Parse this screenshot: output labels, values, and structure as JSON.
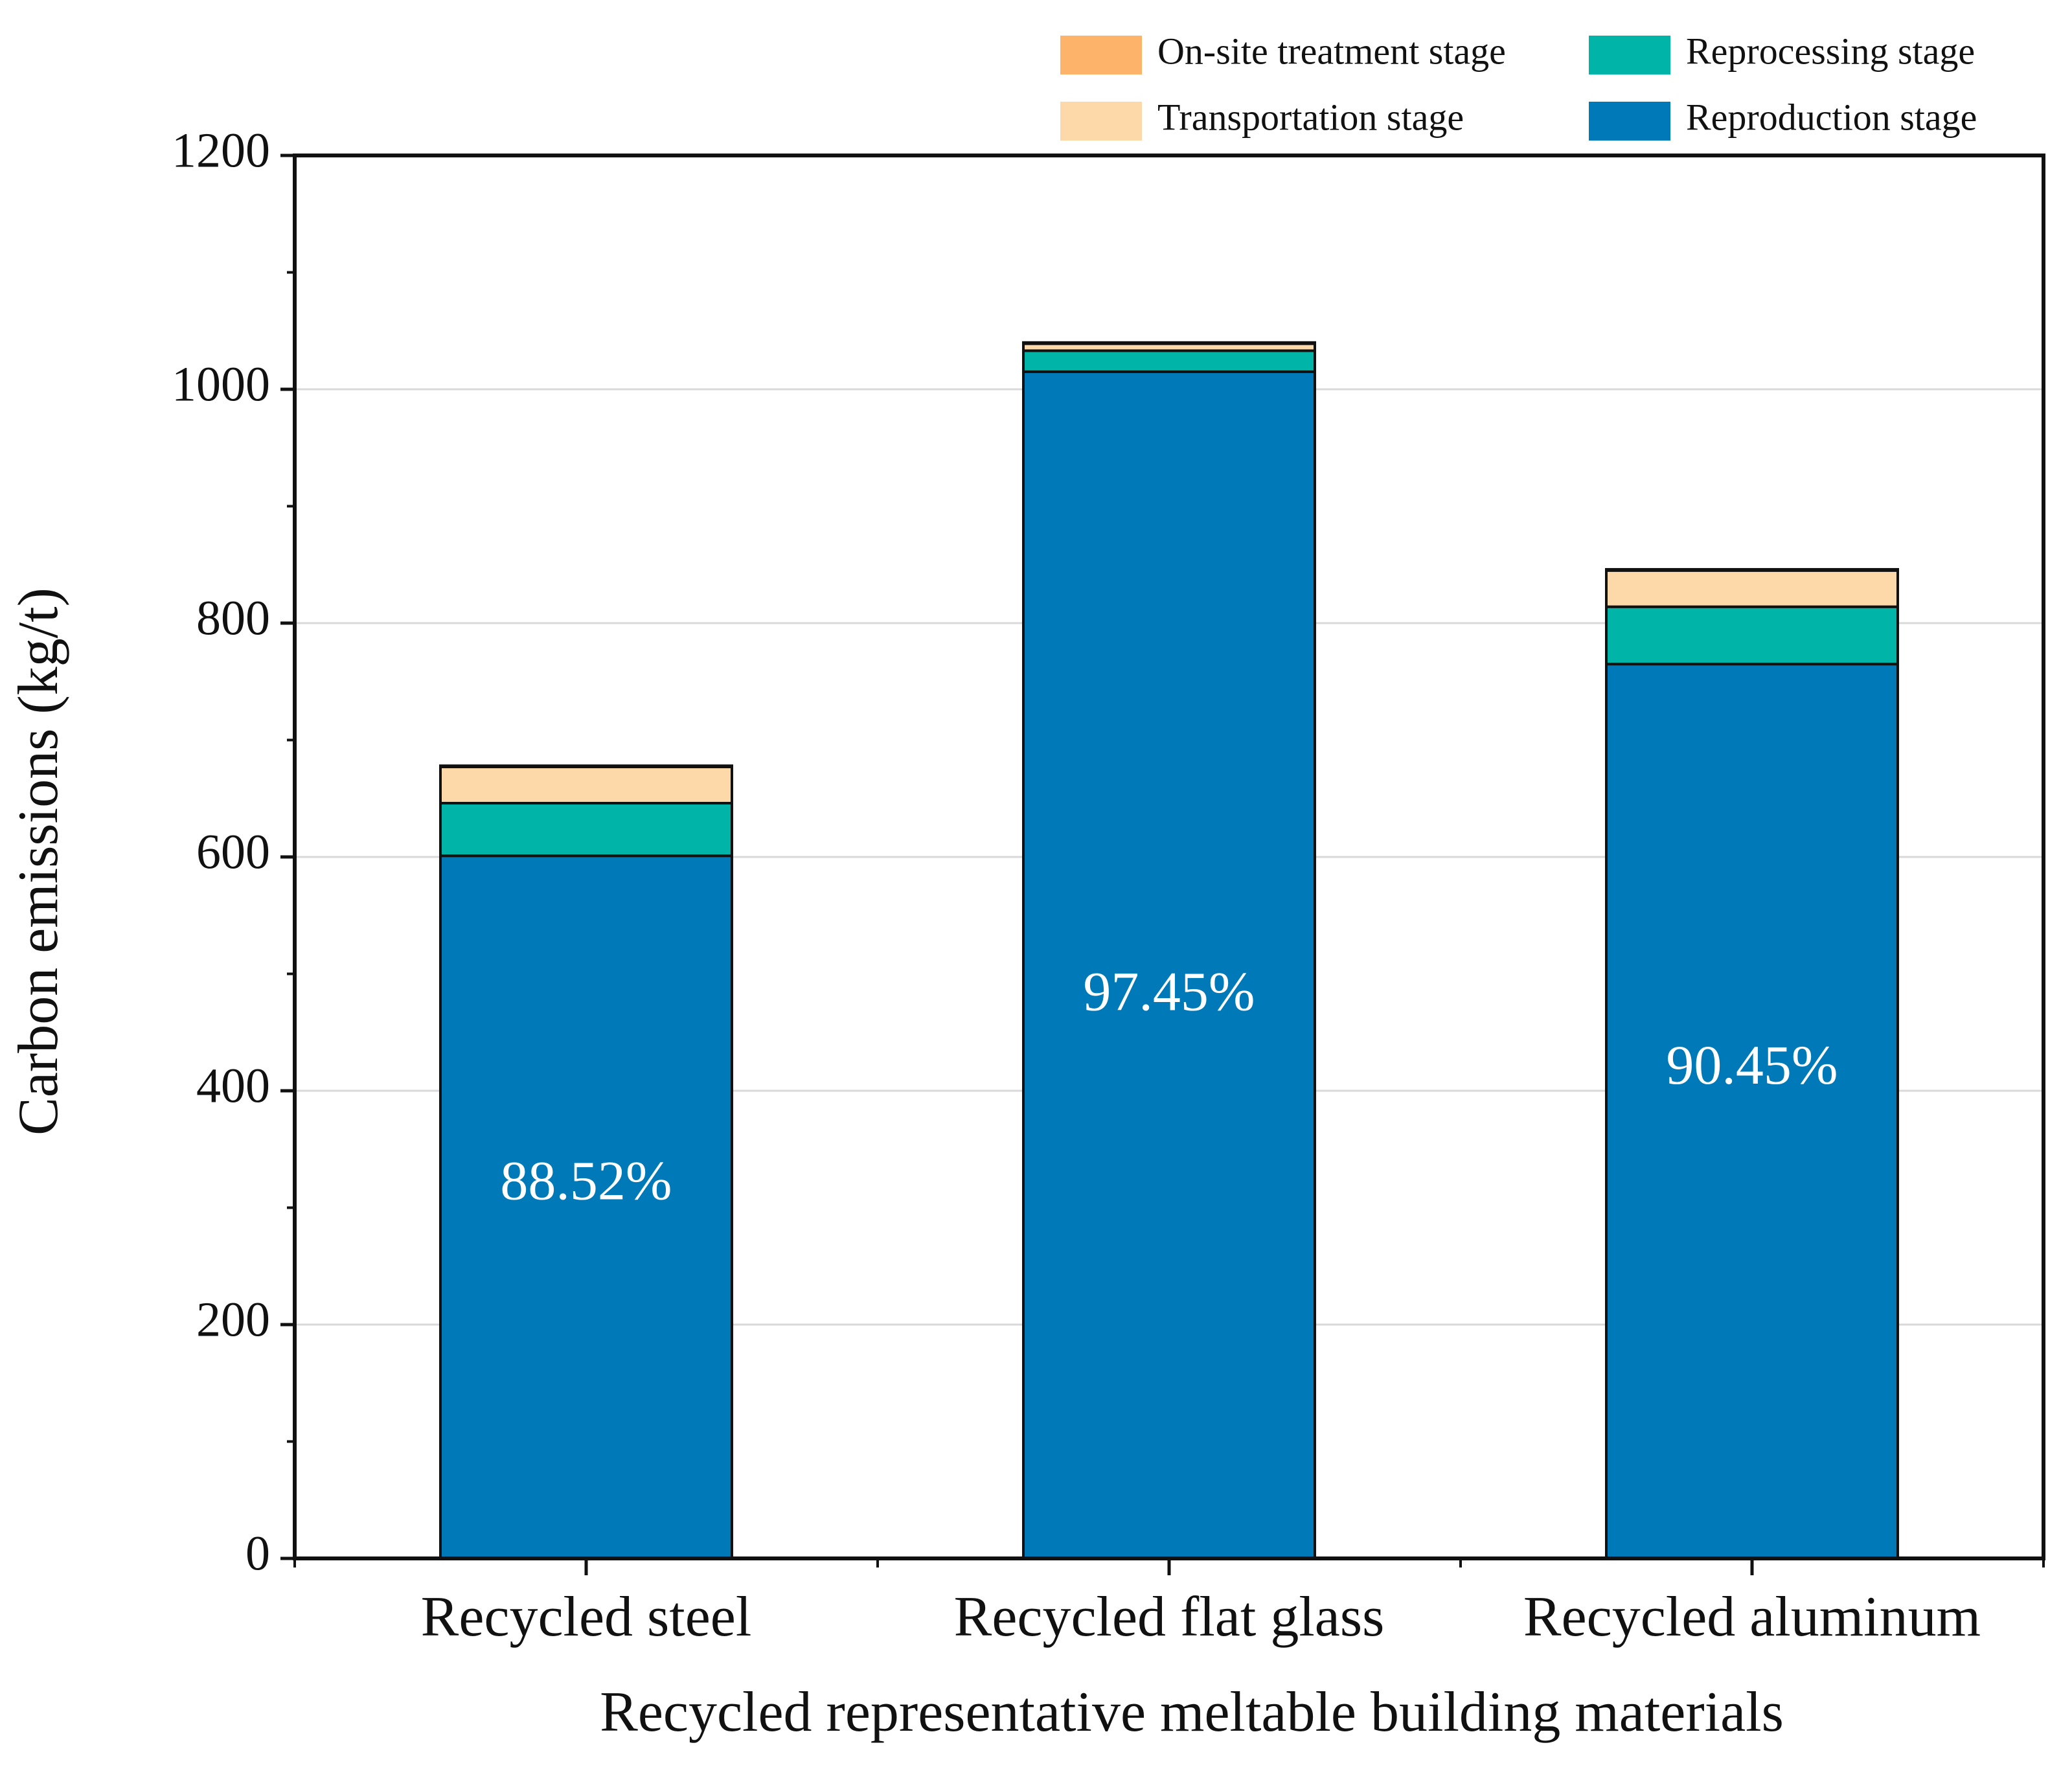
{
  "chart_data": {
    "type": "bar",
    "stacked": true,
    "title": "",
    "xlabel": "Recycled representative meltable building materials",
    "ylabel": "Carbon emissions (kg/t)",
    "ylim": [
      0,
      1200
    ],
    "yticks": [
      0,
      200,
      400,
      600,
      800,
      1000,
      1200
    ],
    "y_minor_step": 100,
    "grid": true,
    "legend_position": "top-right",
    "categories": [
      "Recycled steel",
      "Recycled flat glass",
      "Recycled aluminum"
    ],
    "series": [
      {
        "name": "Reproduction stage",
        "color": "#0079B8",
        "values": [
          601,
          1015,
          765
        ]
      },
      {
        "name": "Reprocessing stage",
        "color": "#00B5A7",
        "values": [
          45,
          18,
          49
        ]
      },
      {
        "name": "Transportation stage",
        "color": "#FDD8A9",
        "values": [
          31,
          6,
          31
        ]
      },
      {
        "name": "On-site treatment stage",
        "color": "#FDB46A",
        "values": [
          1,
          1,
          1
        ]
      }
    ],
    "legend_order": [
      "On-site treatment stage",
      "Reprocessing stage",
      "Transportation stage",
      "Reproduction stage"
    ],
    "annotations": [
      {
        "category": "Recycled steel",
        "text": "88.52%",
        "y": 318
      },
      {
        "category": "Recycled flat glass",
        "text": "97.45%",
        "y": 480
      },
      {
        "category": "Recycled aluminum",
        "text": "90.45%",
        "y": 417
      }
    ]
  }
}
